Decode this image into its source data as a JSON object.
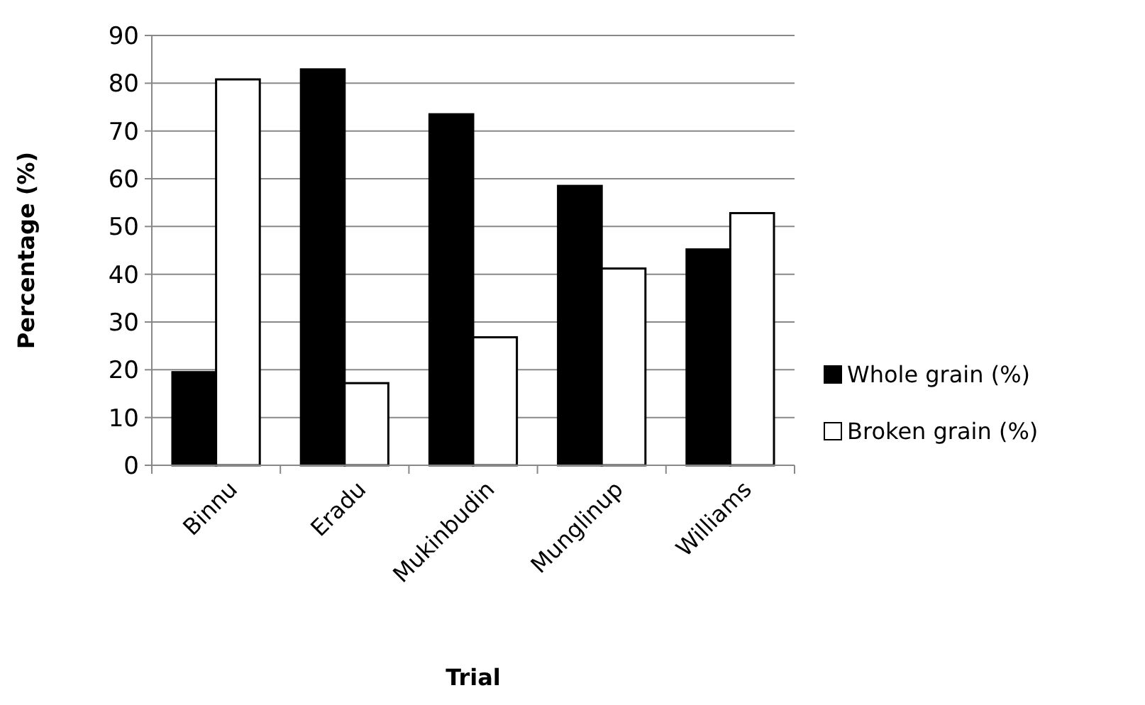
{
  "chart_data": {
    "type": "bar",
    "xlabel": "Trial",
    "ylabel": "Percentage (%)",
    "categories": [
      "Binnu",
      "Eradu",
      "Mukinbudin",
      "Munglinup",
      "Williams"
    ],
    "series": [
      {
        "name": "Whole grain (%)",
        "color": "#000000",
        "values": [
          19.5,
          82.9,
          73.5,
          58.5,
          45.2
        ]
      },
      {
        "name": "Broken grain (%)",
        "color": "#ffffff",
        "values": [
          80.8,
          17.2,
          26.8,
          41.2,
          52.8
        ]
      }
    ],
    "ylim": [
      0,
      90
    ],
    "yticks": [
      0,
      10,
      20,
      30,
      40,
      50,
      60,
      70,
      80,
      90
    ],
    "grid": "y",
    "legend": "right"
  }
}
